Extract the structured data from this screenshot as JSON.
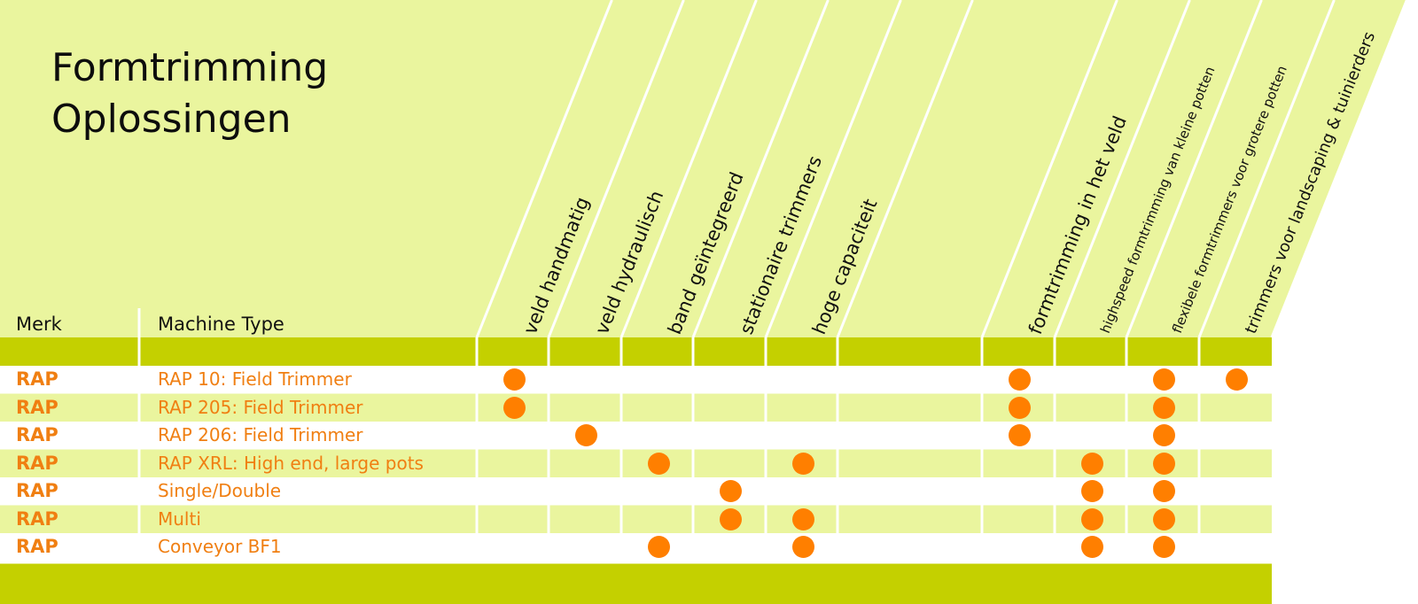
{
  "title_line1": "Formtrimming",
  "title_line2": "Oplossingen",
  "headers": {
    "brand": "Merk",
    "machine_type": "Machine Type"
  },
  "columns": [
    {
      "label": "veld handmatig",
      "size": "normal"
    },
    {
      "label": "veld hydraulisch",
      "size": "normal"
    },
    {
      "label": "band geïntegreerd",
      "size": "normal"
    },
    {
      "label": "stationaire trimmers",
      "size": "normal"
    },
    {
      "label": "hoge capaciteit",
      "size": "normal"
    },
    {
      "label": "",
      "size": "normal"
    },
    {
      "label": "formtrimming in het veld",
      "size": "normal"
    },
    {
      "label": "highspeed formtrimming van kleine potten",
      "size": "small"
    },
    {
      "label": "flexibele formtrimmers voor grotere potten",
      "size": "small"
    },
    {
      "label": "trimmers voor landscaping & tuinierders",
      "size": "medium"
    }
  ],
  "rows": [
    {
      "brand": "RAP",
      "machine": "RAP 10: Field Trimmer",
      "marks": [
        1,
        0,
        0,
        0,
        0,
        0,
        1,
        0,
        1,
        1
      ]
    },
    {
      "brand": "RAP",
      "machine": "RAP 205: Field Trimmer",
      "marks": [
        1,
        0,
        0,
        0,
        0,
        0,
        1,
        0,
        1,
        0
      ]
    },
    {
      "brand": "RAP",
      "machine": "RAP 206: Field Trimmer",
      "marks": [
        0,
        1,
        0,
        0,
        0,
        0,
        1,
        0,
        1,
        0
      ]
    },
    {
      "brand": "RAP",
      "machine": "RAP XRL: High end, large pots",
      "marks": [
        0,
        0,
        1,
        0,
        1,
        0,
        0,
        1,
        1,
        0
      ]
    },
    {
      "brand": "RAP",
      "machine": "Single/Double",
      "marks": [
        0,
        0,
        0,
        1,
        0,
        0,
        0,
        1,
        1,
        0
      ]
    },
    {
      "brand": "RAP",
      "machine": "Multi",
      "marks": [
        0,
        0,
        0,
        1,
        1,
        0,
        0,
        1,
        1,
        0
      ]
    },
    {
      "brand": "RAP",
      "machine": "Conveyor BF1",
      "marks": [
        0,
        0,
        1,
        0,
        1,
        0,
        0,
        1,
        1,
        0
      ]
    }
  ],
  "colors": {
    "header_bg": "#eaf59e",
    "band": "#c4d000",
    "row_alt": "#eaf59e",
    "text_accent": "#f07f12",
    "dot": "#ff7f00"
  }
}
